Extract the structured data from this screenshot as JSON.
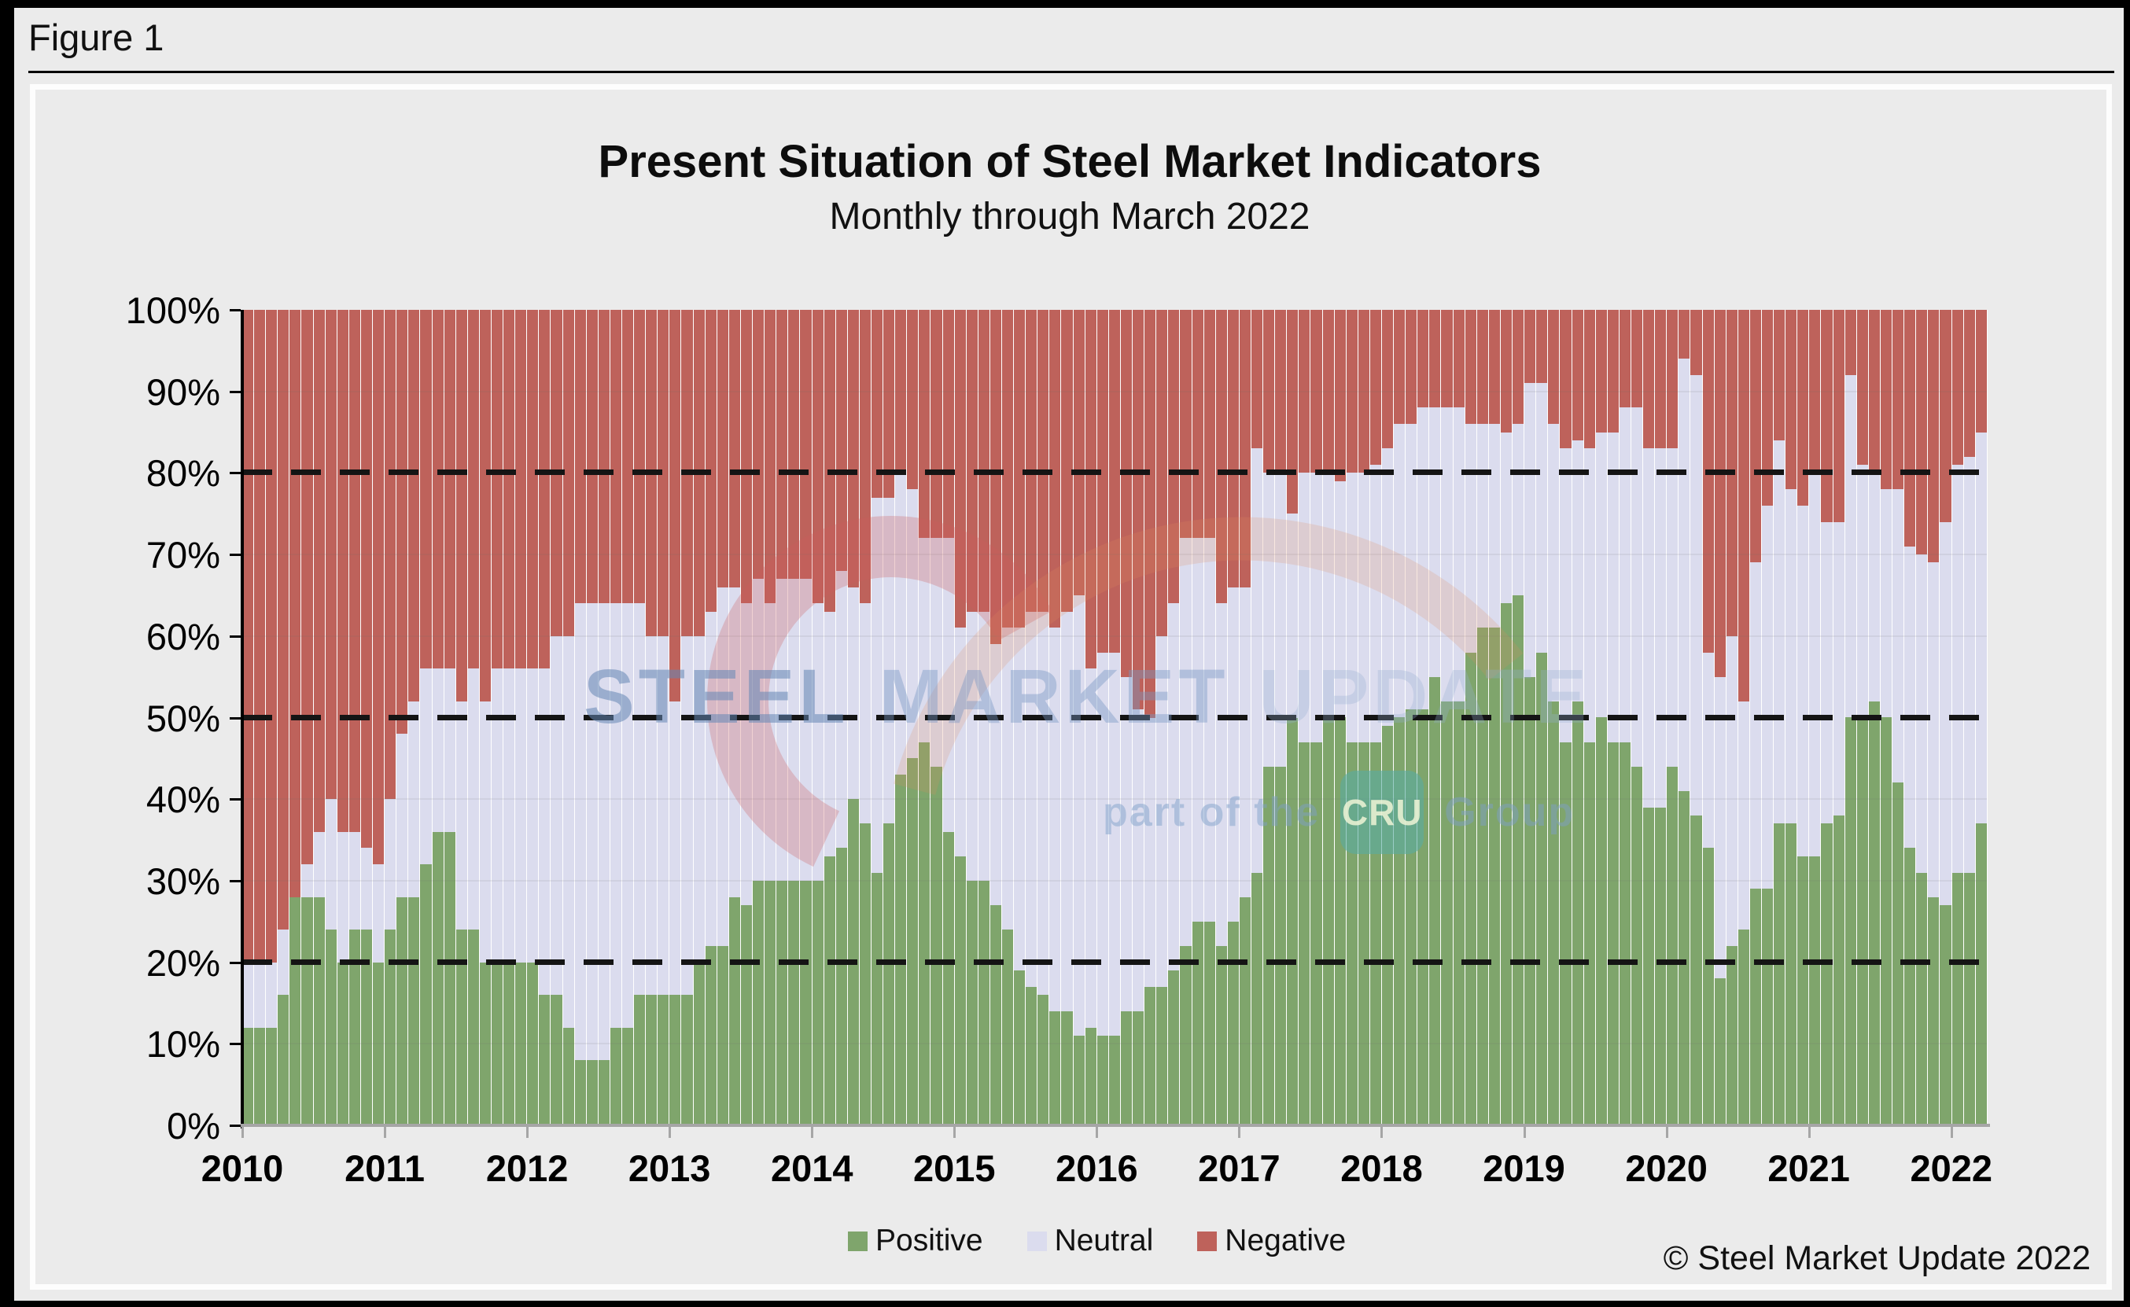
{
  "figure": {
    "label": "Figure 1"
  },
  "chart": {
    "title": "Present Situation of Steel Market Indicators",
    "subtitle": "Monthly through March 2022",
    "copyright": "© Steel Market Update 2022",
    "colors": {
      "positive": "#7FA56C",
      "neutral": "#DBDCEE",
      "negative": "#BE625B",
      "axis_x": "#A6A6A6",
      "axis_y": "#000000",
      "page_bg": "#EBEBEB"
    },
    "watermark": {
      "word1": "STEEL",
      "word2": "MARKET",
      "word3": "UPDATE",
      "part_of_the": "part of the",
      "cru": "CRU",
      "group": "Group"
    }
  },
  "chart_data": {
    "type": "bar",
    "stacked": true,
    "stack_total": 100,
    "x_start": "2010-01",
    "x_end": "2022-03",
    "x_year_labels": [
      "2010",
      "2011",
      "2012",
      "2013",
      "2014",
      "2015",
      "2016",
      "2017",
      "2018",
      "2019",
      "2020",
      "2021",
      "2022"
    ],
    "y_tick_labels": [
      "0%",
      "10%",
      "20%",
      "30%",
      "40%",
      "50%",
      "60%",
      "70%",
      "80%",
      "90%",
      "100%"
    ],
    "ylim": [
      0,
      100
    ],
    "guide_lines_pct": [
      20,
      50,
      80
    ],
    "grid": "faint horizontal every 10%",
    "legend_position": "bottom-center",
    "series": [
      {
        "name": "Positive",
        "color": "#7FA56C",
        "values": [
          12,
          12,
          12,
          16,
          28,
          28,
          28,
          24,
          20,
          24,
          24,
          20,
          24,
          28,
          28,
          32,
          36,
          36,
          24,
          24,
          20,
          20,
          20,
          20,
          20,
          16,
          16,
          12,
          8,
          8,
          8,
          12,
          12,
          16,
          16,
          16,
          16,
          16,
          20,
          22,
          22,
          28,
          27,
          30,
          30,
          30,
          30,
          30,
          30,
          33,
          34,
          40,
          37,
          31,
          37,
          43,
          45,
          47,
          44,
          36,
          33,
          30,
          30,
          27,
          24,
          19,
          17,
          16,
          14,
          14,
          11,
          12,
          11,
          11,
          14,
          14,
          17,
          17,
          19,
          22,
          25,
          25,
          22,
          25,
          28,
          31,
          44,
          44,
          50,
          47,
          47,
          50,
          50,
          47,
          47,
          47,
          49,
          50,
          51,
          51,
          55,
          52,
          52,
          58,
          61,
          61,
          64,
          65,
          55,
          58,
          52,
          47,
          52,
          47,
          50,
          47,
          47,
          44,
          39,
          39,
          44,
          41,
          38,
          34,
          18,
          22,
          24,
          29,
          29,
          37,
          37,
          33,
          33,
          37,
          38,
          50,
          50,
          52,
          50,
          42,
          34,
          31,
          28,
          27,
          31,
          31,
          37
        ]
      },
      {
        "name": "Neutral",
        "color": "#DBDCEE",
        "values": [
          8,
          8,
          8,
          8,
          0,
          4,
          8,
          16,
          16,
          12,
          10,
          12,
          16,
          20,
          24,
          24,
          20,
          20,
          28,
          32,
          32,
          36,
          36,
          36,
          36,
          40,
          44,
          48,
          56,
          56,
          56,
          52,
          52,
          48,
          44,
          44,
          36,
          44,
          40,
          41,
          44,
          38,
          37,
          37,
          34,
          37,
          37,
          37,
          34,
          30,
          34,
          26,
          27,
          46,
          40,
          37,
          33,
          25,
          28,
          36,
          28,
          33,
          33,
          32,
          37,
          42,
          46,
          47,
          47,
          49,
          54,
          44,
          47,
          47,
          41,
          37,
          33,
          43,
          45,
          50,
          47,
          47,
          42,
          41,
          38,
          52,
          36,
          36,
          25,
          33,
          33,
          30,
          29,
          33,
          33,
          34,
          34,
          36,
          35,
          37,
          33,
          36,
          36,
          28,
          25,
          25,
          21,
          21,
          36,
          33,
          34,
          36,
          32,
          36,
          35,
          38,
          41,
          44,
          44,
          44,
          39,
          53,
          54,
          24,
          37,
          38,
          28,
          40,
          47,
          47,
          41,
          43,
          47,
          37,
          36,
          42,
          31,
          28,
          28,
          36,
          37,
          39,
          41,
          47,
          50,
          51,
          48
        ]
      },
      {
        "name": "Negative",
        "color": "#BE625B",
        "values": [
          80,
          80,
          80,
          76,
          72,
          68,
          64,
          60,
          64,
          64,
          66,
          68,
          60,
          52,
          48,
          44,
          44,
          44,
          48,
          44,
          48,
          44,
          44,
          44,
          44,
          44,
          40,
          40,
          36,
          36,
          36,
          36,
          36,
          36,
          40,
          40,
          48,
          40,
          40,
          37,
          34,
          34,
          36,
          33,
          36,
          33,
          33,
          33,
          36,
          37,
          32,
          34,
          36,
          23,
          23,
          20,
          22,
          28,
          28,
          28,
          39,
          37,
          37,
          41,
          39,
          39,
          37,
          37,
          39,
          37,
          35,
          44,
          42,
          42,
          45,
          49,
          50,
          40,
          36,
          28,
          28,
          28,
          36,
          34,
          34,
          17,
          20,
          20,
          25,
          20,
          20,
          20,
          21,
          20,
          20,
          19,
          17,
          14,
          14,
          12,
          12,
          12,
          12,
          14,
          14,
          14,
          15,
          14,
          9,
          9,
          14,
          17,
          16,
          17,
          15,
          15,
          12,
          12,
          17,
          17,
          17,
          6,
          8,
          42,
          45,
          40,
          48,
          31,
          24,
          16,
          22,
          24,
          20,
          26,
          26,
          8,
          19,
          20,
          22,
          22,
          29,
          30,
          31,
          26,
          19,
          18,
          15
        ]
      }
    ]
  }
}
